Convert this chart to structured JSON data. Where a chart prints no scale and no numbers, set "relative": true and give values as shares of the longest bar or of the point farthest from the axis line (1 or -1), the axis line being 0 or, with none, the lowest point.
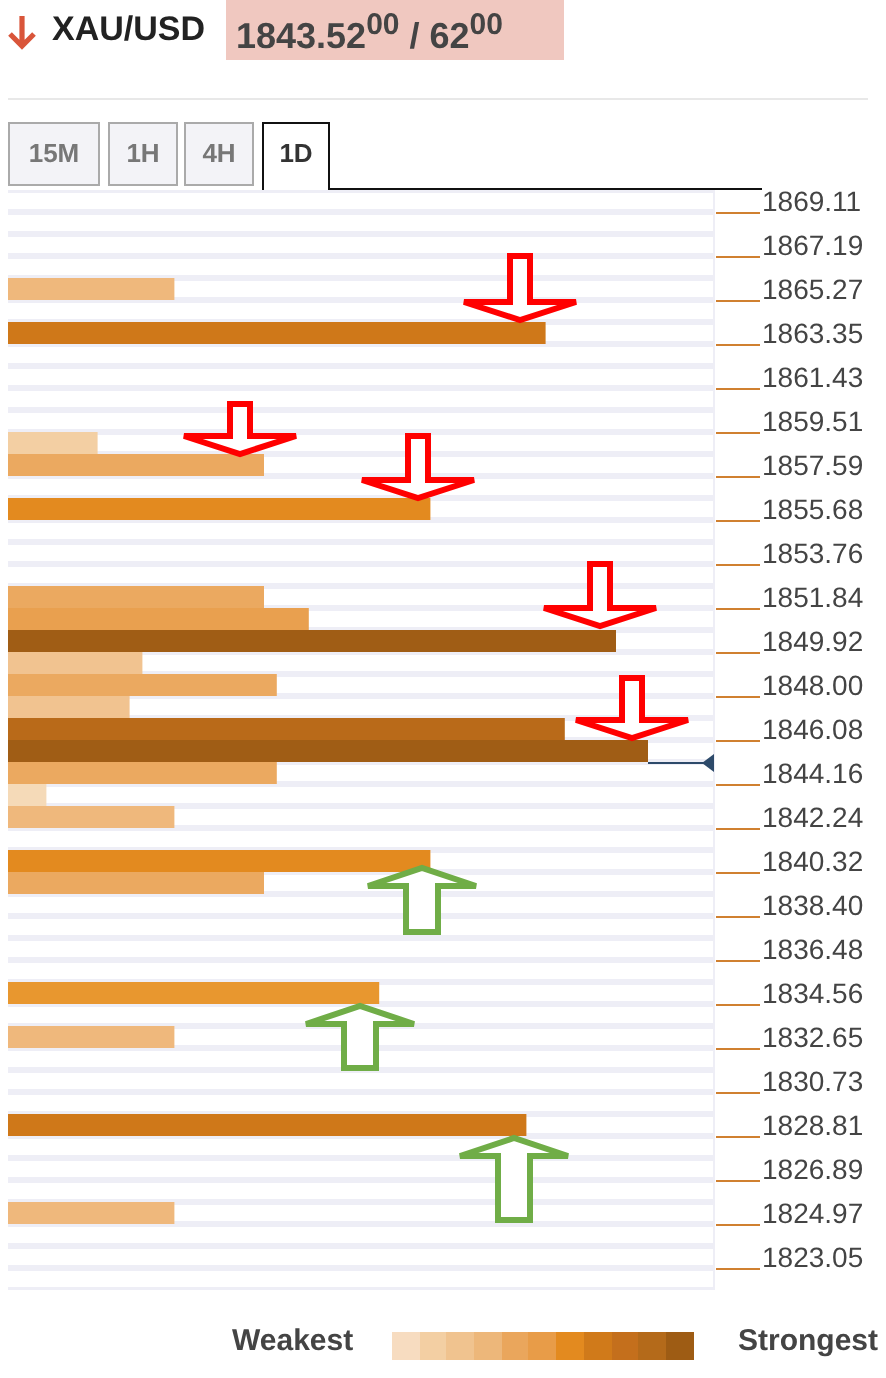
{
  "chart_data": {
    "type": "bar",
    "orientation": "horizontal",
    "relative": true,
    "grid": true,
    "title": "XAU/USD",
    "subtitle": "1843.52$^{00}$ / 62$^{00}$",
    "annotations": [
      "15M",
      "1H",
      "4H",
      "1D",
      "Weakest",
      "Strongest"
    ],
    "categories": [
      "1869.11",
      null,
      "1867.19",
      null,
      "1865.27",
      null,
      "1863.35",
      null,
      "1861.43",
      null,
      "1859.51",
      null,
      "1857.59",
      null,
      "1855.68",
      null,
      "1853.76",
      null,
      "1851.84",
      null,
      "1849.92",
      null,
      "1848.00",
      null,
      "1846.08",
      null,
      "1844.16",
      null,
      "1842.24",
      null,
      "1840.32",
      null,
      "1838.40",
      null,
      "1836.48",
      null,
      "1834.56",
      null,
      "1832.65",
      null,
      "1830.73",
      null,
      "1828.81",
      null,
      "1826.89",
      null,
      "1824.97",
      null,
      "1823.05",
      null
    ],
    "values": [
      null,
      null,
      null,
      null,
      0.26,
      null,
      0.84,
      null,
      null,
      null,
      null,
      0.14,
      0.4,
      null,
      0.66,
      null,
      null,
      null,
      0.4,
      0.47,
      0.95,
      0.21,
      0.42,
      0.19,
      0.87,
      1,
      0.42,
      0.06,
      0.26,
      null,
      0.66,
      0.4,
      null,
      null,
      null,
      null,
      0.58,
      null,
      0.26,
      null,
      null,
      null,
      0.81,
      null,
      null,
      null,
      0.26,
      null,
      null,
      null
    ],
    "colors": [
      null,
      null,
      null,
      null,
      "#efb87c",
      null,
      "#cf7819",
      null,
      null,
      null,
      null,
      "#f3cfa3",
      "#eba960",
      null,
      "#e38a1f",
      null,
      null,
      null,
      "#eba960",
      "#e9a04f",
      "#a05d15",
      "#f1c390",
      "#eba960",
      "#f1c390",
      "#b96a19",
      "#a05d15",
      "#eba960",
      "#f5dab8",
      "#efb87c",
      null,
      "#e38a1f",
      "#eba960",
      null,
      null,
      null,
      null,
      "#e8972f",
      null,
      "#efb87c",
      null,
      null,
      null,
      "#cf7819",
      null,
      null,
      null,
      "#efb87c",
      null,
      null,
      null
    ]
  }
}
